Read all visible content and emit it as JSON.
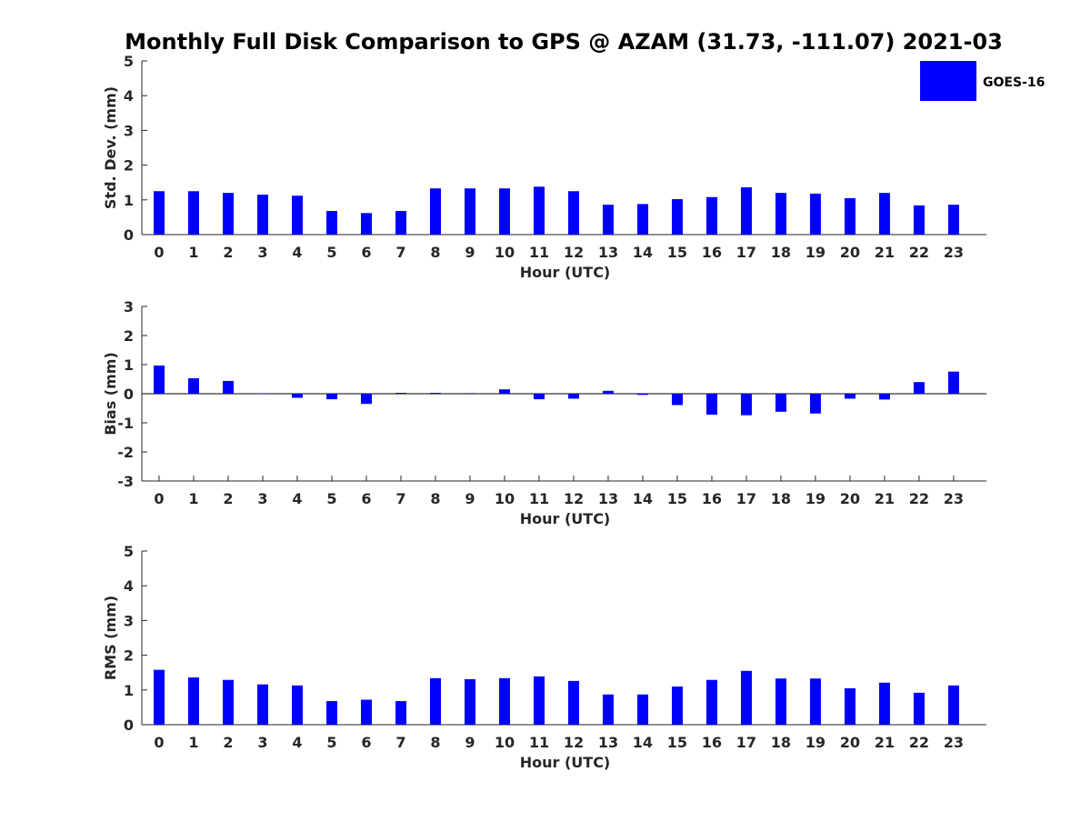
{
  "chart_data": {
    "type": "bar",
    "title": "Monthly Full Disk Comparison to GPS @ AZAM (31.73, -111.07) 2021-03",
    "legend": {
      "label": "GOES-16",
      "placement": "top-right",
      "color": "#0000ff"
    },
    "bar_color": "#0000ff",
    "categories": [
      "0",
      "1",
      "2",
      "3",
      "4",
      "5",
      "6",
      "7",
      "8",
      "9",
      "10",
      "11",
      "12",
      "13",
      "14",
      "15",
      "16",
      "17",
      "18",
      "19",
      "20",
      "21",
      "22",
      "23"
    ],
    "panels": [
      {
        "name": "std_dev",
        "ylabel": "Std. Dev. (mm)",
        "xlabel": "Hour (UTC)",
        "ylim": [
          0,
          5
        ],
        "yticks": [
          "0",
          "1",
          "2",
          "3",
          "4",
          "5"
        ],
        "values": [
          1.25,
          1.25,
          1.2,
          1.15,
          1.12,
          0.68,
          0.62,
          0.68,
          1.33,
          1.33,
          1.33,
          1.38,
          1.25,
          0.86,
          0.88,
          1.02,
          1.08,
          1.36,
          1.2,
          1.18,
          1.05,
          1.2,
          0.84,
          0.86
        ]
      },
      {
        "name": "bias",
        "ylabel": "Bias (mm)",
        "xlabel": "Hour (UTC)",
        "ylim": [
          -3,
          3
        ],
        "yticks": [
          "-3",
          "-2",
          "-1",
          "0",
          "1",
          "2",
          "3"
        ],
        "zero_line": true,
        "values": [
          0.97,
          0.53,
          0.44,
          0.0,
          -0.14,
          -0.19,
          -0.35,
          0.03,
          0.03,
          0.02,
          0.15,
          -0.19,
          -0.17,
          0.1,
          -0.04,
          -0.39,
          -0.72,
          -0.74,
          -0.62,
          -0.68,
          -0.17,
          -0.2,
          0.4,
          0.76
        ]
      },
      {
        "name": "rms",
        "ylabel": "RMS (mm)",
        "xlabel": "Hour (UTC)",
        "ylim": [
          0,
          5
        ],
        "yticks": [
          "0",
          "1",
          "2",
          "3",
          "4",
          "5"
        ],
        "values": [
          1.58,
          1.36,
          1.29,
          1.16,
          1.13,
          0.68,
          0.72,
          0.68,
          1.34,
          1.31,
          1.34,
          1.39,
          1.26,
          0.87,
          0.87,
          1.1,
          1.29,
          1.55,
          1.33,
          1.33,
          1.05,
          1.21,
          0.92,
          1.13
        ]
      }
    ]
  }
}
